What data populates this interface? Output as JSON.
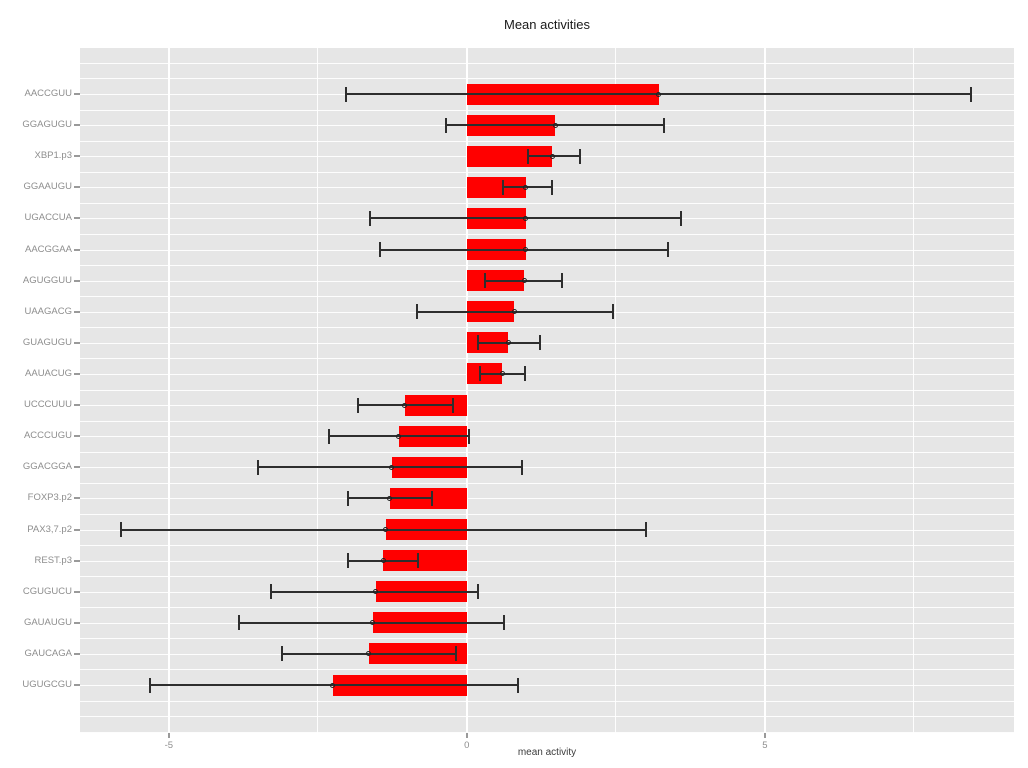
{
  "title": "Mean activities",
  "chart_data": {
    "type": "bar",
    "orientation": "horizontal",
    "title": "Mean activities",
    "xlabel": "mean activity",
    "x_ticks": [
      -5,
      0,
      5
    ],
    "x_minor_gridlines": [
      -2.5,
      2.5,
      7.5
    ],
    "xlim": [
      -6.49,
      9.18
    ],
    "grid": true,
    "panel_background": "#e6e6e6",
    "bar_color": "#ff0000",
    "errorbar_color": "#2e2e2e",
    "categories": [
      "AACCGUU",
      "GGAGUGU",
      "XBP1.p3",
      "GGAAUGU",
      "UGACCUA",
      "AACGGAA",
      "AGUGGUU",
      "UAAGACG",
      "GUAGUGU",
      "AAUACUG",
      "UCCCUUU",
      "ACCCUGU",
      "GGACGGA",
      "FOXP3.p2",
      "PAX3,7.p2",
      "REST.p3",
      "CGUGUCU",
      "GAUAUGU",
      "GAUCAGA",
      "UGUGCGU"
    ],
    "series": [
      {
        "name": "mean activity",
        "values": [
          3.22,
          1.48,
          1.43,
          0.99,
          0.99,
          0.99,
          0.96,
          0.8,
          0.7,
          0.59,
          -1.04,
          -1.14,
          -1.26,
          -1.29,
          -1.36,
          -1.4,
          -1.53,
          -1.58,
          -1.65,
          -2.25
        ]
      }
    ],
    "error_low": [
      -2.03,
      -0.35,
      1.02,
      0.6,
      -1.63,
      -1.46,
      0.31,
      -0.83,
      0.18,
      0.22,
      -1.83,
      -2.32,
      -3.5,
      -2.0,
      -5.81,
      -2.0,
      -3.28,
      -3.82,
      -3.11,
      -5.32
    ],
    "error_high": [
      8.45,
      3.3,
      1.9,
      1.43,
      3.59,
      3.37,
      1.59,
      2.45,
      1.22,
      0.97,
      -0.24,
      0.04,
      0.93,
      -0.59,
      3.0,
      -0.82,
      0.19,
      0.62,
      -0.19,
      0.85
    ]
  }
}
